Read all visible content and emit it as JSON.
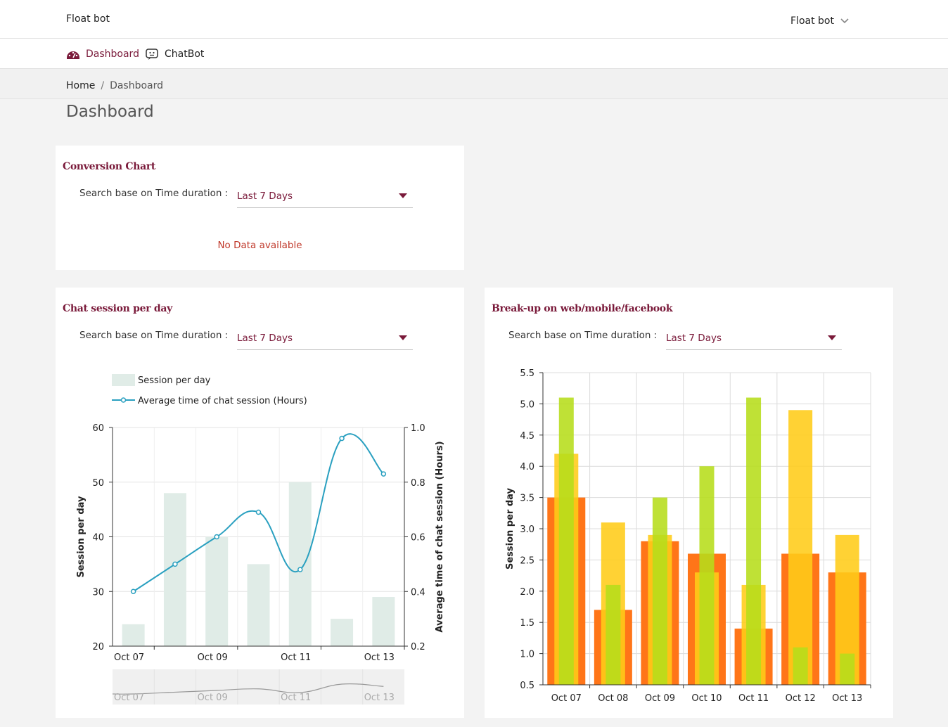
{
  "header": {
    "brand": "Float bot",
    "user_menu": "Float bot"
  },
  "nav": {
    "items": [
      {
        "label": "Dashboard",
        "icon": "speedometer-icon"
      },
      {
        "label": "ChatBot",
        "icon": "chatbot-icon"
      }
    ]
  },
  "breadcrumb": {
    "home": "Home",
    "separator": "/",
    "current": "Dashboard"
  },
  "page_title": "Dashboard",
  "conversion": {
    "title": "Conversion Chart",
    "filter_label": "Search base on Time duration :",
    "filter_value": "Last 7 Days",
    "empty_text": "No Data available"
  },
  "sessions": {
    "title": "Chat session per day",
    "filter_label": "Search base on Time duration :",
    "filter_value": "Last 7 Days"
  },
  "breakup": {
    "title": "Break-up on web/mobile/facebook",
    "filter_label": "Search base on Time duration :",
    "filter_value": "Last 7 Days"
  },
  "chart_data": [
    {
      "type": "bar+line",
      "chart": "sessions",
      "categories": [
        "Oct 07",
        "Oct 08",
        "Oct 09",
        "Oct 10",
        "Oct 11",
        "Oct 12",
        "Oct 13"
      ],
      "x_tick_labels": [
        "Oct 07",
        "Oct 09",
        "Oct 11",
        "Oct 13"
      ],
      "series": [
        {
          "name": "Session per day",
          "type": "bar",
          "axis": "left",
          "color": "#e0ece7",
          "values": [
            24,
            48,
            40,
            35,
            50,
            25,
            29
          ]
        },
        {
          "name": "Average time of chat session (Hours)",
          "type": "line",
          "axis": "right",
          "color": "#2aa0c0",
          "x": [
            0,
            1,
            2,
            3,
            4,
            5,
            6
          ],
          "values": [
            0.4,
            0.5,
            0.6,
            0.69,
            0.48,
            0.96,
            0.83
          ]
        }
      ],
      "ylabel": "Session per day",
      "ylabel_right": "Average time of chat session (Hours)",
      "ylim": [
        20,
        60
      ],
      "yticks": [
        20,
        30,
        40,
        50,
        60
      ],
      "ylim_right": [
        0.2,
        1.0
      ],
      "yticks_right": [
        "0.2",
        "0.4",
        "0.6",
        "0.8",
        "1.0"
      ],
      "legend_position": "top-left",
      "grid": true,
      "navigator": true
    },
    {
      "type": "bar",
      "chart": "breakup",
      "categories": [
        "Oct 07",
        "Oct 08",
        "Oct 09",
        "Oct 10",
        "Oct 11",
        "Oct 12",
        "Oct 13"
      ],
      "series": [
        {
          "color": "#ff7518",
          "values": [
            3.5,
            1.7,
            2.8,
            2.6,
            1.4,
            2.6,
            2.3
          ]
        },
        {
          "color": "#ffcc18",
          "values": [
            4.2,
            3.1,
            2.9,
            2.3,
            2.1,
            4.9,
            2.9
          ]
        },
        {
          "color": "#b6dd1a",
          "values": [
            5.1,
            2.1,
            3.5,
            4.0,
            5.1,
            1.1,
            1.0
          ]
        }
      ],
      "ylabel": "Session per day",
      "ylim": [
        0.5,
        5.5
      ],
      "yticks": [
        "0.5",
        "1.0",
        "1.5",
        "2.0",
        "2.5",
        "3.0",
        "3.5",
        "4.0",
        "4.5",
        "5.0",
        "5.5"
      ],
      "grid": true
    }
  ]
}
